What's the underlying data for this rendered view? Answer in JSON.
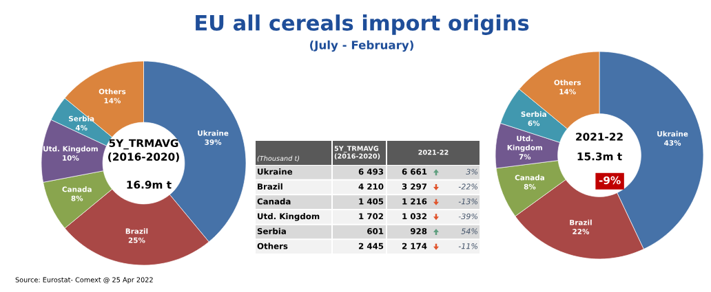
{
  "chart_data": [
    {
      "type": "donut",
      "title": "EU all cereals import origins",
      "subtitle": "(July - February)",
      "categories": [
        "Ukraine",
        "Brazil",
        "Canada",
        "Utd. Kingdom",
        "Serbia",
        "Others"
      ],
      "values": [
        39,
        25,
        8,
        10,
        4,
        14
      ],
      "value_labels": [
        "39%",
        "25%",
        "8%",
        "10%",
        "4%",
        "14%"
      ],
      "colors": [
        "#4672a8",
        "#a94846",
        "#89a54e",
        "#71588f",
        "#4198af",
        "#db843d"
      ],
      "annotations": [
        "5Y_TRMAVG\n(2016-2020)",
        "16.9m t",
        "Source: Eurostat- Comext @ 25 Apr 2022"
      ]
    },
    {
      "type": "other",
      "categories": [
        "Ukraine",
        "Brazil",
        "Canada",
        "Utd. Kingdom",
        "Serbia",
        "Others"
      ],
      "annotations": [
        "(Thousand t)"
      ],
      "series": [
        {
          "name": "5Y_TRMAVG\n(2016-2020)",
          "values": [
            6493,
            4210,
            1405,
            1702,
            601,
            2445
          ],
          "value_labels": [
            "6 493",
            "4 210",
            "1 405",
            "1 702",
            "601",
            "2 445"
          ],
          "colors": [
            "#d9d9d9",
            "#f2f2f2",
            "#d9d9d9",
            "#f2f2f2",
            "#d9d9d9",
            "#f2f2f2"
          ]
        },
        {
          "name": "2021-22",
          "values": [
            6661,
            3297,
            1216,
            1032,
            928,
            2174
          ],
          "value_labels": [
            "6 661",
            "3 297",
            "1 216",
            "1 032",
            "928",
            "2 174"
          ],
          "colors": [
            "#d9d9d9",
            "#f2f2f2",
            "#d9d9d9",
            "#f2f2f2",
            "#d9d9d9",
            "#f2f2f2"
          ]
        },
        {
          "values": [
            3,
            -22,
            -13,
            -39,
            54,
            -11
          ],
          "colors": [
            "#5e9e7e",
            "#e0542c",
            "#e0542c",
            "#e0542c",
            "#5e9e7e",
            "#e0542c"
          ],
          "value_labels": [
            "3%",
            "-22%",
            "-13%",
            "-39%",
            "54%",
            "-11%"
          ]
        }
      ]
    },
    {
      "type": "donut",
      "categories": [
        "Ukraine",
        "Brazil",
        "Canada",
        "Utd.\nKingdom",
        "Serbia",
        "Others"
      ],
      "values": [
        43,
        22,
        8,
        7,
        6,
        14
      ],
      "value_labels": [
        "43%",
        "22%",
        "8%",
        "7%",
        "6%",
        "14%"
      ],
      "colors": [
        "#4672a8",
        "#a94846",
        "#89a54e",
        "#71588f",
        "#4198af",
        "#db843d"
      ],
      "annotations": [
        "2021-22",
        "15.3m t",
        "-9%"
      ]
    }
  ]
}
